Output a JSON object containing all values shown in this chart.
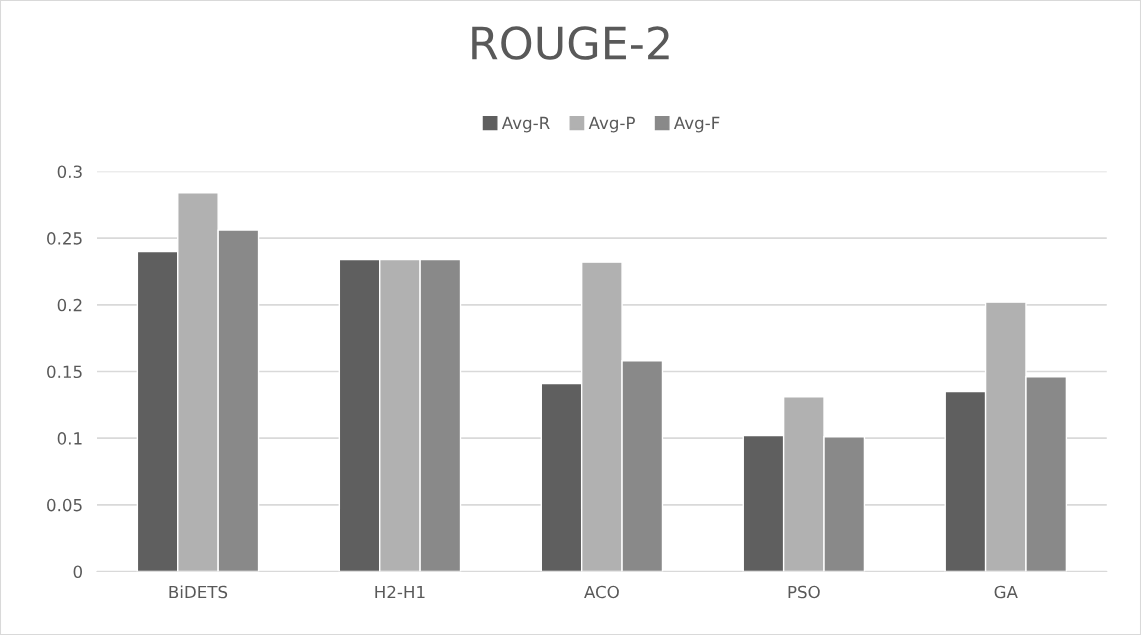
{
  "chart_data": {
    "type": "bar",
    "title": "ROUGE-2",
    "categories": [
      "BiDETS",
      "H2-H1",
      "ACO",
      "PSO",
      "GA"
    ],
    "series": [
      {
        "name": "Avg-R",
        "color": "#5f5f5f",
        "values": [
          0.24,
          0.234,
          0.141,
          0.102,
          0.135
        ]
      },
      {
        "name": "Avg-P",
        "color": "#b1b1b1",
        "values": [
          0.284,
          0.234,
          0.232,
          0.131,
          0.202
        ]
      },
      {
        "name": "Avg-F",
        "color": "#898989",
        "values": [
          0.256,
          0.234,
          0.158,
          0.101,
          0.146
        ]
      }
    ],
    "ylim": [
      0,
      0.3
    ],
    "yticks": [
      0,
      0.05,
      0.1,
      0.15,
      0.2,
      0.25,
      0.3
    ],
    "grid": "y",
    "legend": "top"
  }
}
